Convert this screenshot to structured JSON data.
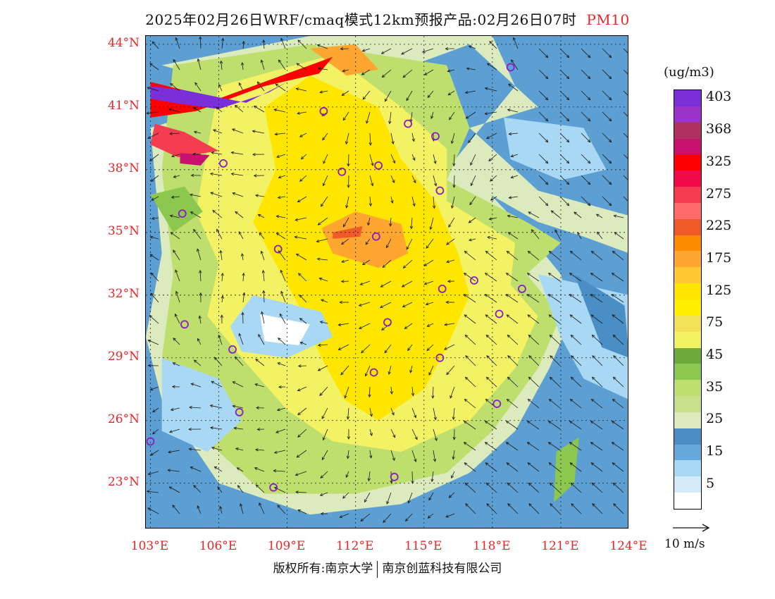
{
  "title": {
    "text": "2025年02月26日WRF/cmaq模式12km预报产品:02月26日07时",
    "pollutant": "PM10"
  },
  "axes": {
    "lat_labels": [
      "44°N",
      "41°N",
      "38°N",
      "35°N",
      "32°N",
      "29°N",
      "26°N",
      "23°N"
    ],
    "lat_values": [
      44,
      41,
      38,
      35,
      32,
      29,
      26,
      23
    ],
    "lon_labels": [
      "103°E",
      "106°E",
      "109°E",
      "112°E",
      "115°E",
      "118°E",
      "121°E",
      "124°E"
    ],
    "lon_values": [
      103,
      106,
      109,
      112,
      115,
      118,
      121,
      124
    ],
    "lat_range": [
      20.8,
      44.4
    ],
    "lon_range": [
      102.8,
      124.0
    ]
  },
  "legend": {
    "unit": "(ug/m3)",
    "levels": [
      {
        "label": "403",
        "color": "#7b2fd8"
      },
      {
        "label": "",
        "color": "#9a32c8"
      },
      {
        "label": "368",
        "color": "#b03060"
      },
      {
        "label": "",
        "color": "#c8106e"
      },
      {
        "label": "325",
        "color": "#ff0000"
      },
      {
        "label": "",
        "color": "#f00a4a"
      },
      {
        "label": "275",
        "color": "#f53d52"
      },
      {
        "label": "",
        "color": "#ff6a6a"
      },
      {
        "label": "225",
        "color": "#f05a28"
      },
      {
        "label": "",
        "color": "#ff8c00"
      },
      {
        "label": "175",
        "color": "#ffa630"
      },
      {
        "label": "",
        "color": "#ffc832"
      },
      {
        "label": "125",
        "color": "#ffe600"
      },
      {
        "label": "",
        "color": "#ffee00"
      },
      {
        "label": "75",
        "color": "#f3e15a"
      },
      {
        "label": "",
        "color": "#f2f264"
      },
      {
        "label": "45",
        "color": "#6eaa3a"
      },
      {
        "label": "",
        "color": "#8cc850"
      },
      {
        "label": "35",
        "color": "#bede6e"
      },
      {
        "label": "",
        "color": "#c8e08c"
      },
      {
        "label": "25",
        "color": "#dcebbe"
      },
      {
        "label": "",
        "color": "#4a8ec6"
      },
      {
        "label": "15",
        "color": "#64a8dc"
      },
      {
        "label": "",
        "color": "#a8d8f4"
      },
      {
        "label": "5",
        "color": "#d4ecfa"
      },
      {
        "label": "",
        "color": "#ffffff"
      }
    ]
  },
  "wind_reference": {
    "label": "10 m/s"
  },
  "footer": {
    "left": "版权所有:南京大学",
    "right": "南京创蓝科技有限公司"
  },
  "stations": [
    {
      "lon": 118.8,
      "lat": 42.9
    },
    {
      "lon": 110.6,
      "lat": 40.8
    },
    {
      "lon": 114.3,
      "lat": 40.2
    },
    {
      "lon": 115.5,
      "lat": 39.6
    },
    {
      "lon": 106.2,
      "lat": 38.3
    },
    {
      "lon": 111.4,
      "lat": 37.9
    },
    {
      "lon": 113.0,
      "lat": 38.2
    },
    {
      "lon": 115.7,
      "lat": 37.0
    },
    {
      "lon": 104.4,
      "lat": 35.9
    },
    {
      "lon": 112.9,
      "lat": 34.8
    },
    {
      "lon": 108.6,
      "lat": 34.2
    },
    {
      "lon": 117.2,
      "lat": 32.7
    },
    {
      "lon": 115.8,
      "lat": 32.3
    },
    {
      "lon": 119.3,
      "lat": 32.3
    },
    {
      "lon": 118.3,
      "lat": 31.1
    },
    {
      "lon": 104.5,
      "lat": 30.6
    },
    {
      "lon": 113.4,
      "lat": 30.7
    },
    {
      "lon": 106.6,
      "lat": 29.4
    },
    {
      "lon": 115.7,
      "lat": 29.0
    },
    {
      "lon": 112.8,
      "lat": 28.3
    },
    {
      "lon": 118.2,
      "lat": 26.8
    },
    {
      "lon": 106.9,
      "lat": 26.4
    },
    {
      "lon": 103.0,
      "lat": 25.0
    },
    {
      "lon": 108.4,
      "lat": 22.8
    },
    {
      "lon": 113.7,
      "lat": 23.3
    }
  ],
  "concentration_regions": [
    {
      "level": "12-25",
      "color": "#dcebbe",
      "points": [
        [
          103.5,
          43
        ],
        [
          110,
          44.4
        ],
        [
          118,
          44.4
        ],
        [
          119,
          42
        ],
        [
          116,
          38
        ],
        [
          120,
          35.5
        ],
        [
          122,
          34.8
        ],
        [
          124,
          34
        ],
        [
          124,
          35.8
        ],
        [
          120,
          37
        ],
        [
          117,
          40
        ],
        [
          120,
          41
        ],
        [
          117,
          44
        ],
        [
          112,
          42
        ],
        [
          106,
          41
        ],
        [
          103,
          40
        ],
        [
          103.5,
          34
        ],
        [
          102.8,
          30
        ],
        [
          103.5,
          27
        ],
        [
          106,
          23
        ],
        [
          110,
          21.5
        ],
        [
          114,
          22
        ],
        [
          117,
          23.5
        ],
        [
          119,
          25.5
        ],
        [
          120.5,
          28.5
        ],
        [
          121.5,
          31
        ],
        [
          121,
          33
        ],
        [
          119.5,
          35
        ],
        [
          116,
          39
        ]
      ]
    },
    {
      "level": "35-45",
      "color": "#bede6e",
      "points": [
        [
          104,
          43
        ],
        [
          110,
          44
        ],
        [
          116,
          43
        ],
        [
          117,
          40
        ],
        [
          116,
          37.5
        ],
        [
          119.5,
          35.5
        ],
        [
          121,
          34.5
        ],
        [
          119.5,
          33
        ],
        [
          121,
          31
        ],
        [
          120,
          28.5
        ],
        [
          118,
          25.5
        ],
        [
          116,
          23.5
        ],
        [
          112,
          22.5
        ],
        [
          108,
          22.5
        ],
        [
          105.5,
          25
        ],
        [
          103.5,
          29
        ],
        [
          104,
          33
        ],
        [
          103.5,
          38
        ]
      ]
    },
    {
      "level": "75",
      "color": "#f2f264",
      "points": [
        [
          106,
          42
        ],
        [
          111,
          43.5
        ],
        [
          114,
          41
        ],
        [
          116,
          39
        ],
        [
          116,
          36.5
        ],
        [
          119,
          34.5
        ],
        [
          118.8,
          32.5
        ],
        [
          120,
          31
        ],
        [
          119,
          28.5
        ],
        [
          117,
          26
        ],
        [
          114,
          24.5
        ],
        [
          111,
          25
        ],
        [
          109,
          26.5
        ],
        [
          107,
          29
        ],
        [
          105.5,
          31
        ],
        [
          106,
          33.5
        ],
        [
          105,
          36
        ],
        [
          105.5,
          39
        ]
      ]
    },
    {
      "level": "125",
      "color": "#ffe600",
      "points": [
        [
          108,
          41
        ],
        [
          110,
          42.5
        ],
        [
          113,
          41
        ],
        [
          114,
          38.5
        ],
        [
          115.5,
          36.5
        ],
        [
          116.5,
          34
        ],
        [
          117,
          32
        ],
        [
          116,
          29.5
        ],
        [
          115,
          27.5
        ],
        [
          113,
          26
        ],
        [
          111.5,
          27
        ],
        [
          110.5,
          29
        ],
        [
          109.5,
          31.5
        ],
        [
          108.5,
          33.5
        ],
        [
          107.5,
          35.5
        ],
        [
          108.5,
          38
        ]
      ]
    },
    {
      "level": "175",
      "color": "#ffa630",
      "points": [
        [
          110.5,
          35.2
        ],
        [
          112,
          36
        ],
        [
          114,
          35.4
        ],
        [
          114.3,
          34
        ],
        [
          113,
          33.3
        ],
        [
          111,
          34
        ]
      ]
    },
    {
      "level": "175",
      "color": "#ffa630",
      "points": [
        [
          110,
          43.8
        ],
        [
          112,
          44
        ],
        [
          113,
          42.8
        ],
        [
          111.6,
          42.5
        ]
      ]
    },
    {
      "level": "45",
      "color": "#8cc850",
      "points": [
        [
          103,
          36.8
        ],
        [
          104.5,
          37.2
        ],
        [
          105.3,
          36
        ],
        [
          104,
          35
        ]
      ]
    },
    {
      "level": "15",
      "color": "#a8d8f4",
      "points": [
        [
          107.5,
          32
        ],
        [
          110.5,
          31.2
        ],
        [
          111,
          30
        ],
        [
          109,
          29
        ],
        [
          107,
          29.3
        ],
        [
          106.5,
          30.5
        ]
      ]
    },
    {
      "level": "5",
      "color": "#ffffff",
      "points": [
        [
          107.8,
          31.1
        ],
        [
          110,
          30.6
        ],
        [
          109.5,
          29.6
        ],
        [
          108,
          29.8
        ]
      ]
    },
    {
      "level": "15",
      "color": "#a8d8f4",
      "points": [
        [
          103.5,
          29
        ],
        [
          106,
          28
        ],
        [
          107,
          26
        ],
        [
          105.5,
          24.5
        ],
        [
          103.5,
          25.5
        ]
      ]
    },
    {
      "level": "15",
      "color": "#a8d8f4",
      "points": [
        [
          118.5,
          40.5
        ],
        [
          122,
          40
        ],
        [
          123,
          38
        ],
        [
          121,
          37.5
        ],
        [
          118.8,
          38.5
        ]
      ]
    },
    {
      "level": "15",
      "color": "#a8d8f4",
      "points": [
        [
          120,
          33
        ],
        [
          124,
          32
        ],
        [
          124,
          27
        ],
        [
          122,
          28
        ],
        [
          121,
          30
        ]
      ]
    },
    {
      "level": "225",
      "color": "#f05a28",
      "points": [
        [
          111,
          35
        ],
        [
          112.3,
          35.3
        ],
        [
          112.2,
          34.8
        ],
        [
          111,
          34.7
        ]
      ]
    },
    {
      "level": "325",
      "color": "#ff0000",
      "points": [
        [
          103,
          42.2
        ],
        [
          106,
          41.4
        ],
        [
          109,
          42.6
        ],
        [
          111,
          43.4
        ],
        [
          110.4,
          42.6
        ],
        [
          108,
          42
        ],
        [
          105,
          40.8
        ],
        [
          103,
          40.5
        ]
      ]
    },
    {
      "level": "275",
      "color": "#f53d52",
      "points": [
        [
          103.2,
          40.2
        ],
        [
          104.5,
          39.8
        ],
        [
          106,
          38.9
        ],
        [
          104.2,
          38.6
        ],
        [
          103,
          39.2
        ]
      ]
    },
    {
      "level": "403",
      "color": "#7b2fd8",
      "points": [
        [
          103,
          42
        ],
        [
          104.5,
          41.8
        ],
        [
          107.2,
          41.2
        ],
        [
          109,
          42.2
        ],
        [
          108.2,
          41.7
        ],
        [
          106,
          40.9
        ],
        [
          104,
          41.2
        ],
        [
          103,
          41.4
        ]
      ]
    },
    {
      "level": "368",
      "color": "#c8106e",
      "points": [
        [
          104.3,
          38.8
        ],
        [
          105.6,
          38.7
        ],
        [
          105.2,
          38.2
        ],
        [
          104.3,
          38.3
        ]
      ]
    },
    {
      "level": "45",
      "color": "#8cc850",
      "points": [
        [
          120.8,
          24.5
        ],
        [
          121.8,
          25.2
        ],
        [
          121.6,
          23
        ],
        [
          120.7,
          22.1
        ]
      ]
    },
    {
      "level": "25",
      "color": "#4a8ec6",
      "points": [
        [
          121.6,
          33
        ],
        [
          123.8,
          31.5
        ],
        [
          124,
          29
        ],
        [
          122.8,
          29.5
        ]
      ]
    }
  ]
}
